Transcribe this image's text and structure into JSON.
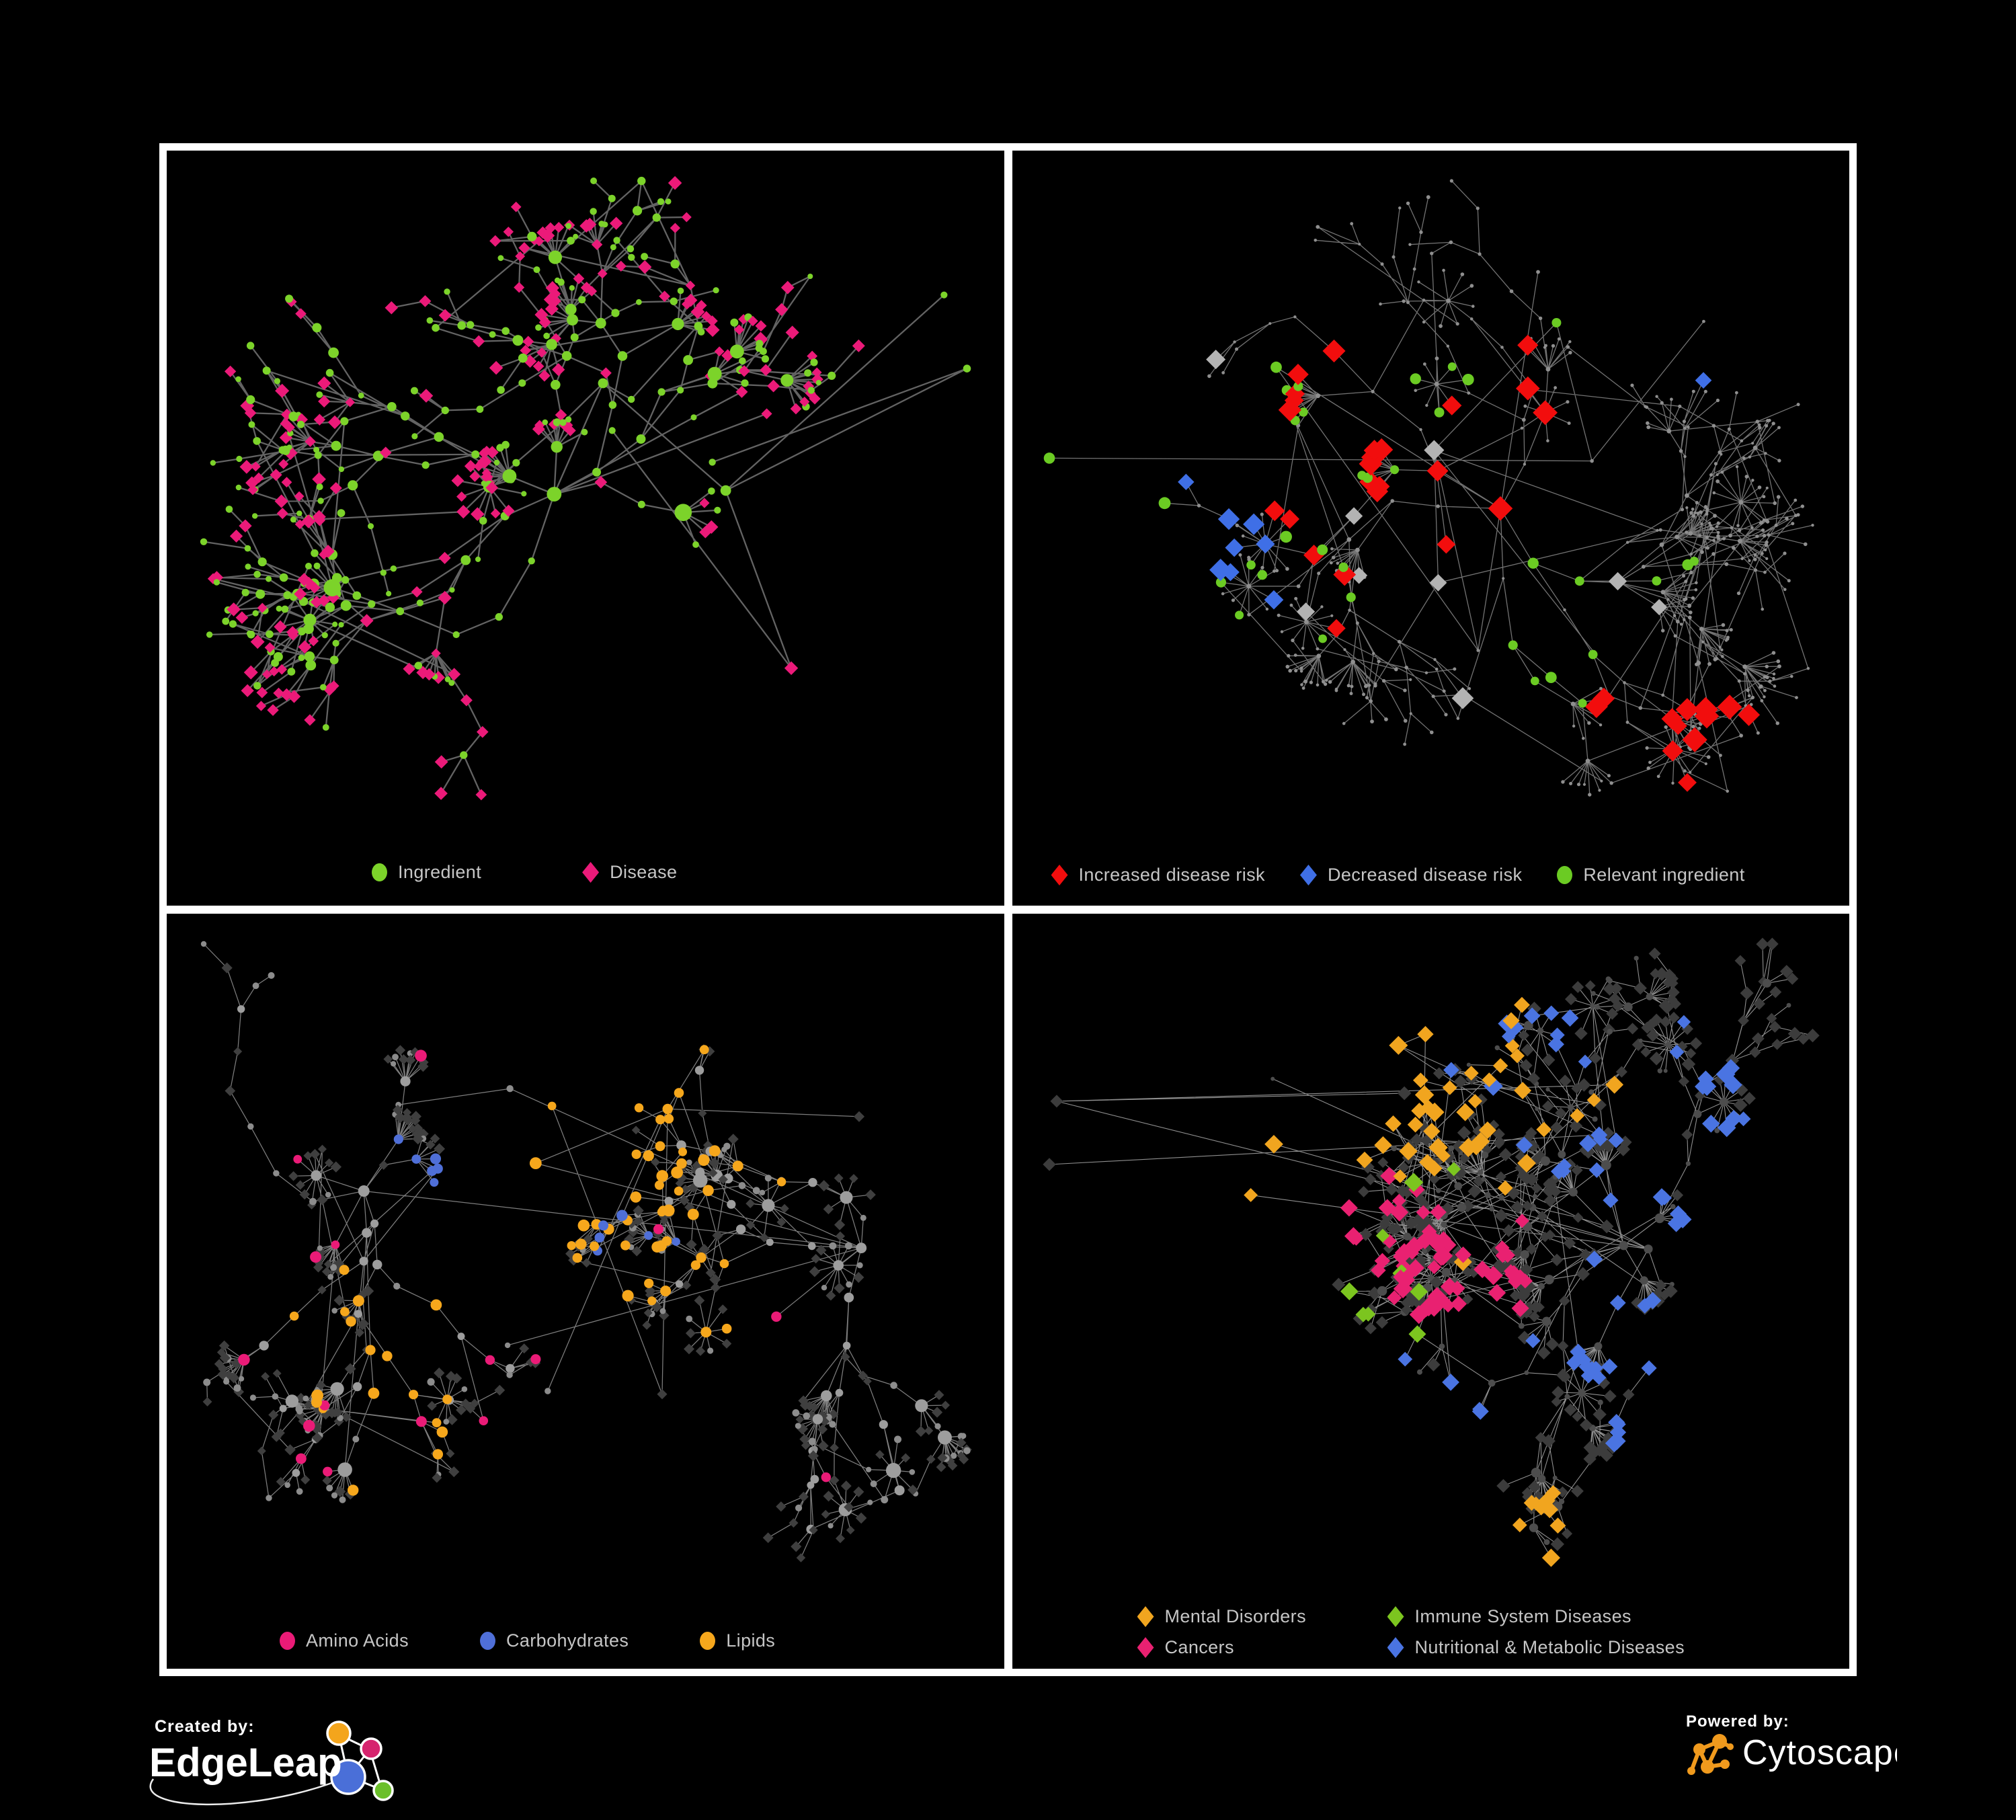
{
  "figure": {
    "background": "#000000",
    "frame_color": "#ffffff",
    "legend_text_color": "#c6c6c6"
  },
  "footer": {
    "created_by_label": "Created by:",
    "edgeleap_wordmark": "EdgeLeap",
    "powered_by_label": "Powered by:",
    "cytoscape_wordmark": "Cytoscape",
    "cytoscape_orange": "#f09a1d",
    "edgeleap_node_colors": [
      "#f4a51c",
      "#d6246e",
      "#4a6fd8",
      "#6bbf2a"
    ]
  },
  "panels": [
    {
      "name": "ingredient-disease-network",
      "legend": {
        "items": [
          {
            "label": "Ingredient",
            "shape": "circle",
            "color": "#7cd32a"
          },
          {
            "label": "Disease",
            "shape": "diamond",
            "color": "#eb1a79"
          }
        ]
      },
      "net": {
        "mode": "p1",
        "seed": 11,
        "nodes": 430,
        "hubs": 11,
        "starP": 0.15,
        "len": 42,
        "maxDepth": 8,
        "extra": 30,
        "edge": {
          "color": "#6e6e6e",
          "width": 2.3
        },
        "base": {
          "circleColor": "#7cd32a",
          "diamondColor": "#eb1a79"
        },
        "highlights": []
      }
    },
    {
      "name": "disease-risk-network",
      "legend": {
        "items": [
          {
            "label": "Increased disease risk",
            "shape": "diamond",
            "color": "#f20d0d"
          },
          {
            "label": "Decreased disease risk",
            "shape": "diamond",
            "color": "#3f6fe6"
          },
          {
            "label": "Relevant ingredient",
            "shape": "circle",
            "color": "#6bcb23"
          }
        ]
      },
      "net": {
        "mode": "p2",
        "seed": 23,
        "nodes": 520,
        "hubs": 13,
        "starP": 0.18,
        "len": 42,
        "maxDepth": 8,
        "extra": 55,
        "edge": {
          "color": "#7e7e7e",
          "width": 1.3
        },
        "base": {
          "dotColor": "#8f8f8f"
        },
        "highlights": [
          {
            "shape": "diamond",
            "color": "#f20d0d",
            "size": 11,
            "count": 36,
            "foci": [
              [
                0.38,
                0.47,
                0.06
              ],
              [
                0.47,
                0.44,
                0.08
              ],
              [
                0.56,
                0.42,
                0.1
              ],
              [
                0.8,
                0.77,
                0.05
              ],
              [
                0.33,
                0.36,
                0.05
              ]
            ]
          },
          {
            "shape": "diamond",
            "color": "#3f6fe6",
            "size": 10,
            "count": 9,
            "foci": [
              [
                0.22,
                0.44,
                0.045
              ],
              [
                0.25,
                0.52,
                0.03
              ],
              [
                0.86,
                0.3,
                0.02
              ]
            ]
          },
          {
            "shape": "diamond",
            "color": "#b3b3b3",
            "size": 10,
            "count": 9,
            "foci": [
              [
                0.27,
                0.36,
                0.05
              ],
              [
                0.5,
                0.47,
                0.1
              ],
              [
                0.62,
                0.6,
                0.08
              ]
            ]
          },
          {
            "shape": "circle",
            "color": "#6bcb23",
            "size": 7.5,
            "count": 34,
            "foci": [
              [
                0.45,
                0.4,
                0.12
              ],
              [
                0.25,
                0.4,
                0.1
              ],
              [
                0.65,
                0.62,
                0.08
              ],
              [
                0.15,
                0.35,
                0.1
              ]
            ]
          }
        ]
      }
    },
    {
      "name": "compound-class-network",
      "legend": {
        "items": [
          {
            "label": "Amino Acids",
            "shape": "circle",
            "color": "#ea1b77"
          },
          {
            "label": "Carbohydrates",
            "shape": "circle",
            "color": "#4f6fd8"
          },
          {
            "label": "Lipids",
            "shape": "circle",
            "color": "#f6a71c"
          }
        ]
      },
      "net": {
        "mode": "p3",
        "seed": 37,
        "nodes": 490,
        "hubs": 12,
        "starP": 0.2,
        "len": 42,
        "maxDepth": 8,
        "extra": 40,
        "edge": {
          "color": "#8b8b8b",
          "width": 1.25
        },
        "base": {
          "circleColor": "#9d9d9d",
          "smallCircleColor": "#8c8c8c",
          "diamondColor": "#3f3f3f"
        },
        "highlights": [
          {
            "shape": "circle",
            "color": "#f6a71c",
            "size": 7.5,
            "count": 72,
            "on": "circle",
            "foci": [
              [
                0.62,
                0.5,
                0.07
              ],
              [
                0.45,
                0.4,
                0.08
              ],
              [
                0.3,
                0.6,
                0.08
              ],
              [
                0.63,
                0.78,
                0.04
              ],
              [
                0.55,
                0.28,
                0.1
              ]
            ]
          },
          {
            "shape": "circle",
            "color": "#4f6fd8",
            "size": 7,
            "count": 13,
            "on": "circle",
            "foci": [
              [
                0.5,
                0.4,
                0.05
              ],
              [
                0.68,
                0.55,
                0.03
              ],
              [
                0.3,
                0.33,
                0.04
              ]
            ]
          },
          {
            "shape": "circle",
            "color": "#ea1b77",
            "size": 7.5,
            "count": 16,
            "on": "circle",
            "foci": [
              [
                0.5,
                0.5,
                0.4
              ]
            ]
          }
        ]
      }
    },
    {
      "name": "disease-class-network",
      "legend": {
        "items": [
          {
            "label": "Mental Disorders",
            "shape": "diamond",
            "color": "#f1a51f"
          },
          {
            "label": "Immune System Diseases",
            "shape": "diamond",
            "color": "#7cc51f"
          },
          {
            "label": "Cancers",
            "shape": "diamond",
            "color": "#e92171"
          },
          {
            "label": "Nutritional & Metabolic Diseases",
            "shape": "diamond",
            "color": "#4a74e2"
          }
        ]
      },
      "net": {
        "mode": "p4",
        "seed": 53,
        "nodes": 620,
        "hubs": 13,
        "starP": 0.22,
        "len": 40,
        "maxDepth": 8,
        "extra": 60,
        "edge": {
          "color": "#9e9e9e",
          "width": 1.1
        },
        "base": {
          "circleColor": "#4d4d4d",
          "diamondColor": "#3c3c3c"
        },
        "highlights": [
          {
            "shape": "diamond",
            "color": "#f1a51f",
            "size": 8.5,
            "count": 95,
            "on": "diamond",
            "foci": [
              [
                0.24,
                0.45,
                0.07
              ],
              [
                0.3,
                0.52,
                0.06
              ],
              [
                0.17,
                0.55,
                0.05
              ],
              [
                0.45,
                0.15,
                0.12
              ],
              [
                0.6,
                0.8,
                0.03
              ],
              [
                0.35,
                0.75,
                0.04
              ]
            ]
          },
          {
            "shape": "diamond",
            "color": "#e92171",
            "size": 8.5,
            "count": 58,
            "on": "diamond",
            "foci": [
              [
                0.48,
                0.47,
                0.07
              ],
              [
                0.55,
                0.52,
                0.05
              ],
              [
                0.27,
                0.7,
                0.06
              ],
              [
                0.94,
                0.42,
                0.04
              ],
              [
                0.4,
                0.6,
                0.05
              ]
            ]
          },
          {
            "shape": "diamond",
            "color": "#4a74e2",
            "size": 8.5,
            "count": 82,
            "on": "diamond",
            "foci": [
              [
                0.57,
                0.64,
                0.05
              ],
              [
                0.8,
                0.38,
                0.07
              ],
              [
                0.86,
                0.25,
                0.06
              ],
              [
                0.55,
                0.08,
                0.09
              ],
              [
                0.3,
                0.22,
                0.08
              ],
              [
                0.75,
                0.6,
                0.06
              ],
              [
                0.2,
                0.8,
                0.06
              ],
              [
                0.45,
                0.82,
                0.05
              ]
            ]
          },
          {
            "shape": "diamond",
            "color": "#7cc51f",
            "size": 8.5,
            "count": 9,
            "on": "diamond",
            "foci": [
              [
                0.37,
                0.47,
                0.08
              ],
              [
                0.52,
                0.53,
                0.03
              ]
            ]
          }
        ]
      }
    }
  ]
}
